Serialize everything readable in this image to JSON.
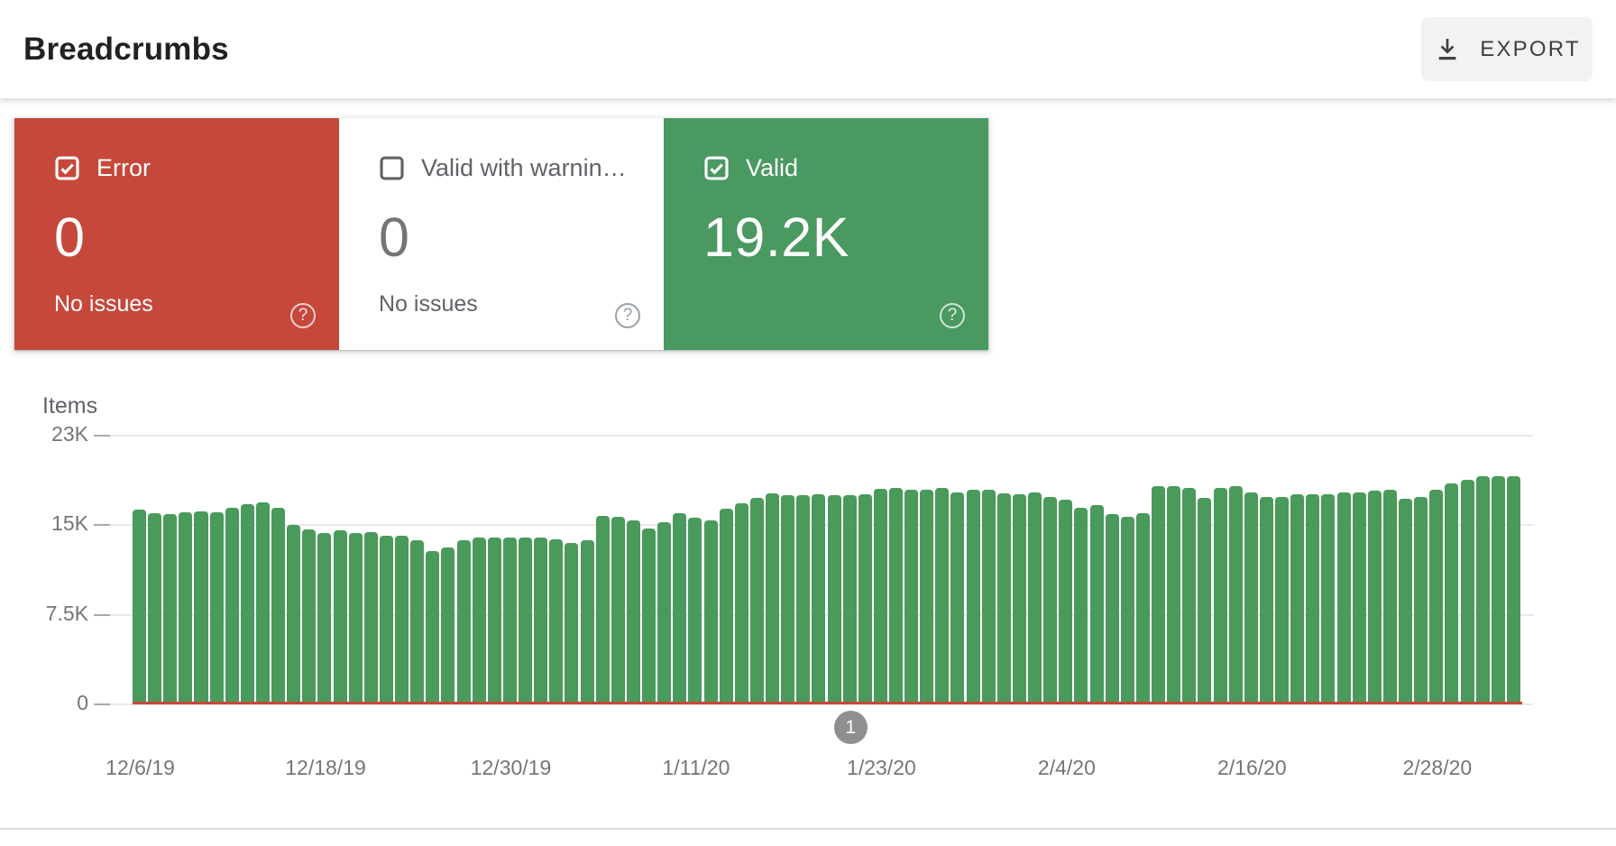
{
  "header": {
    "title": "Breadcrumbs",
    "export_label": "EXPORT"
  },
  "cards": [
    {
      "id": "error",
      "label": "Error",
      "value": "0",
      "sub": "No issues",
      "checked": true,
      "color": "#C5483B",
      "text_color": "#ffffff"
    },
    {
      "id": "valid-with-warnings",
      "label": "Valid with warnin…",
      "value": "0",
      "sub": "No issues",
      "checked": false,
      "color": "#ffffff",
      "text_color": "#757575"
    },
    {
      "id": "valid",
      "label": "Valid",
      "value": "19.2K",
      "sub": "",
      "checked": true,
      "color": "#499960",
      "text_color": "#ffffff"
    }
  ],
  "colors": {
    "error_red": "#C5483B",
    "valid_green": "#499960",
    "bar_green": "#4A9A5B",
    "grid_line": "#e9e9e9",
    "axis_text": "#757575",
    "marker_gray": "#8f8f8f"
  },
  "chart_data": {
    "type": "bar",
    "title": "Items",
    "ylabel": "Items",
    "ylim": [
      0,
      23000
    ],
    "grid": true,
    "legend": "none",
    "yticks": [
      {
        "label": "0",
        "value": 0
      },
      {
        "label": "7.5K",
        "value": 7500
      },
      {
        "label": "15K",
        "value": 15000
      },
      {
        "label": "23K",
        "value": 23000
      }
    ],
    "x_axis_labels": [
      "12/6/19",
      "12/18/19",
      "12/30/19",
      "1/11/20",
      "1/23/20",
      "2/4/20",
      "2/16/20",
      "2/28/20"
    ],
    "x": [
      "12/6/19",
      "12/7/19",
      "12/8/19",
      "12/9/19",
      "12/10/19",
      "12/11/19",
      "12/12/19",
      "12/13/19",
      "12/14/19",
      "12/15/19",
      "12/16/19",
      "12/17/19",
      "12/18/19",
      "12/19/19",
      "12/20/19",
      "12/21/19",
      "12/22/19",
      "12/23/19",
      "12/24/19",
      "12/25/19",
      "12/26/19",
      "12/27/19",
      "12/28/19",
      "12/29/19",
      "12/30/19",
      "12/31/19",
      "1/1/20",
      "1/2/20",
      "1/3/20",
      "1/4/20",
      "1/5/20",
      "1/6/20",
      "1/7/20",
      "1/8/20",
      "1/9/20",
      "1/10/20",
      "1/11/20",
      "1/12/20",
      "1/13/20",
      "1/14/20",
      "1/15/20",
      "1/16/20",
      "1/17/20",
      "1/18/20",
      "1/19/20",
      "1/20/20",
      "1/21/20",
      "1/22/20",
      "1/23/20",
      "1/24/20",
      "1/25/20",
      "1/26/20",
      "1/27/20",
      "1/28/20",
      "1/29/20",
      "1/30/20",
      "1/31/20",
      "2/1/20",
      "2/2/20",
      "2/3/20",
      "2/4/20",
      "2/5/20",
      "2/6/20",
      "2/7/20",
      "2/8/20",
      "2/9/20",
      "2/10/20",
      "2/11/20",
      "2/12/20",
      "2/13/20",
      "2/14/20",
      "2/15/20",
      "2/16/20",
      "2/17/20",
      "2/18/20",
      "2/19/20",
      "2/20/20",
      "2/21/20",
      "2/22/20",
      "2/23/20",
      "2/24/20",
      "2/25/20",
      "2/26/20",
      "2/27/20",
      "2/28/20",
      "2/29/20",
      "3/1/20",
      "3/2/20",
      "3/3/20",
      "3/4/20"
    ],
    "series": [
      {
        "name": "Valid",
        "color": "#4A9A5B",
        "values": [
          16200,
          15900,
          15800,
          16000,
          16100,
          16000,
          16400,
          16700,
          16900,
          16400,
          14900,
          14500,
          14200,
          14400,
          14200,
          14300,
          14000,
          14000,
          13600,
          12700,
          13000,
          13600,
          13800,
          13800,
          13800,
          13800,
          13800,
          13700,
          13400,
          13600,
          15700,
          15600,
          15300,
          14600,
          15100,
          15900,
          15500,
          15300,
          16300,
          16800,
          17300,
          17700,
          17500,
          17500,
          17600,
          17500,
          17500,
          17600,
          18100,
          18200,
          18000,
          18000,
          18200,
          17800,
          18000,
          18000,
          17700,
          17600,
          17800,
          17400,
          17100,
          16400,
          16600,
          15800,
          15600,
          15900,
          18300,
          18300,
          18200,
          17300,
          18200,
          18300,
          17800,
          17400,
          17400,
          17600,
          17600,
          17600,
          17800,
          17800,
          17900,
          18000,
          17200,
          17400,
          18000,
          18600,
          18900,
          19200,
          19200,
          19200
        ]
      },
      {
        "name": "Error",
        "color": "#C5483B",
        "values": [
          0,
          0,
          0,
          0,
          0,
          0,
          0,
          0,
          0,
          0,
          0,
          0,
          0,
          0,
          0,
          0,
          0,
          0,
          0,
          0,
          0,
          0,
          0,
          0,
          0,
          0,
          0,
          0,
          0,
          0,
          0,
          0,
          0,
          0,
          0,
          0,
          0,
          0,
          0,
          0,
          0,
          0,
          0,
          0,
          0,
          0,
          0,
          0,
          0,
          0,
          0,
          0,
          0,
          0,
          0,
          0,
          0,
          0,
          0,
          0,
          0,
          0,
          0,
          0,
          0,
          0,
          0,
          0,
          0,
          0,
          0,
          0,
          0,
          0,
          0,
          0,
          0,
          0,
          0,
          0,
          0,
          0,
          0,
          0,
          0,
          0,
          0,
          0,
          0,
          0
        ]
      }
    ],
    "annotations": [
      {
        "label": "1",
        "x": "1/21/20"
      }
    ]
  }
}
